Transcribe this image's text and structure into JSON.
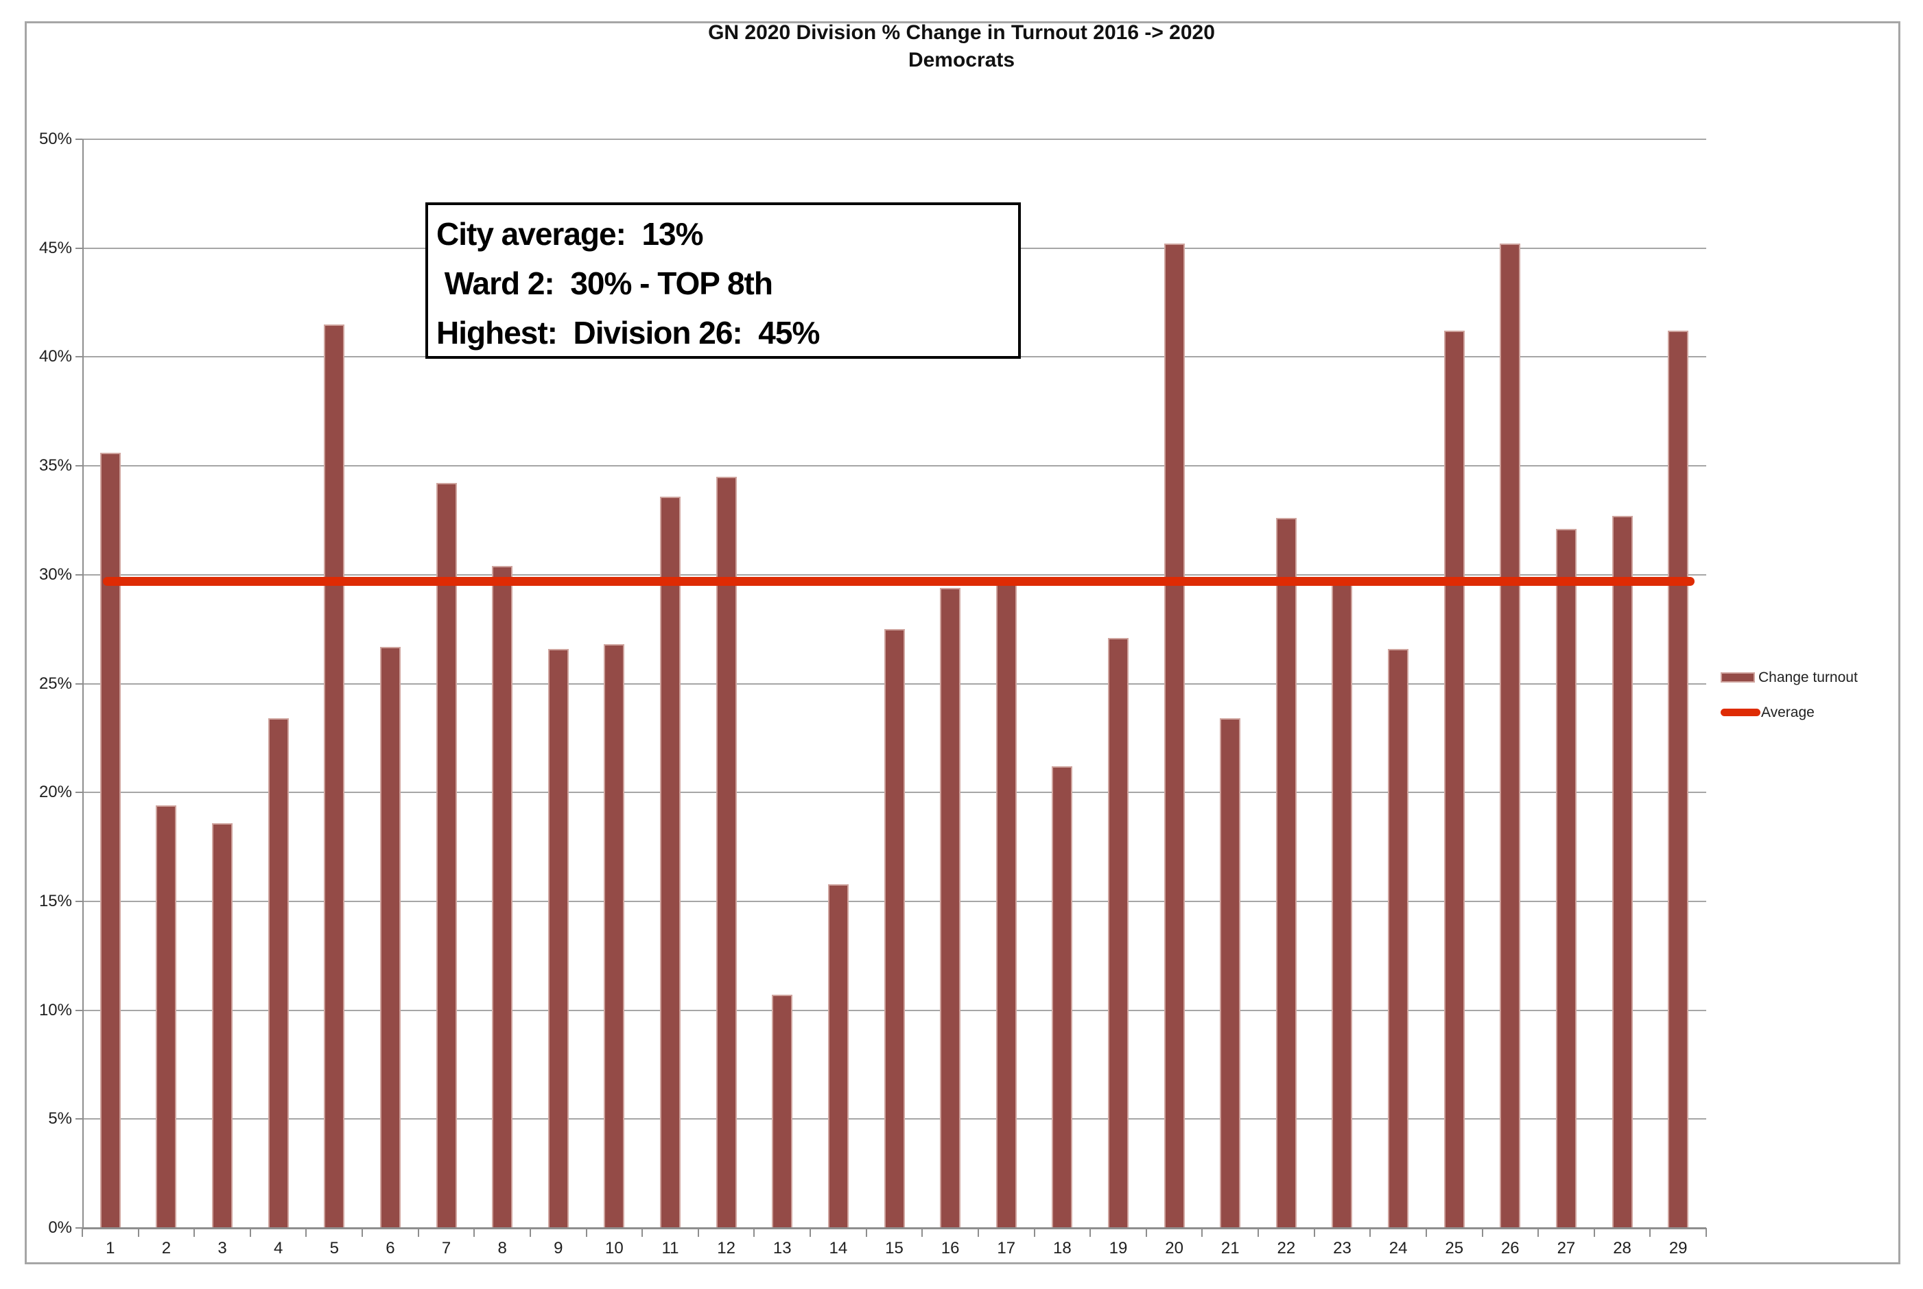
{
  "title": {
    "line1": "GN 2020 Division % Change in Turnout 2016 -> 2020",
    "line2": "Democrats"
  },
  "annotation_box": {
    "lines": [
      "City average:  13%",
      " Ward 2:  30% - TOP 8th",
      "Highest:  Division 26:  45%"
    ]
  },
  "legend": {
    "items": [
      {
        "label": "Change turnout",
        "type": "bar"
      },
      {
        "label": "Average",
        "type": "line"
      }
    ]
  },
  "colors": {
    "bar_fill": "#944b47",
    "bar_border": "#cfa49e",
    "average_line": "#de2b04",
    "gridline": "#a6a6a6",
    "axis": "#8e8e8e",
    "chart_border": "#a6a6a6",
    "text": "#1f1f1f"
  },
  "chart_data": {
    "type": "bar",
    "title": "GN 2020 Division % Change in Turnout 2016 -> 2020",
    "subtitle": "Democrats",
    "categories": [
      "1",
      "2",
      "3",
      "4",
      "5",
      "6",
      "7",
      "8",
      "9",
      "10",
      "11",
      "12",
      "13",
      "14",
      "15",
      "16",
      "17",
      "18",
      "19",
      "20",
      "21",
      "22",
      "23",
      "24",
      "25",
      "26",
      "27",
      "28",
      "29"
    ],
    "series": [
      {
        "name": "Change turnout",
        "values": [
          35.6,
          19.4,
          18.6,
          23.4,
          41.5,
          26.7,
          34.2,
          30.4,
          26.6,
          26.8,
          33.6,
          34.5,
          10.7,
          15.8,
          27.5,
          29.4,
          29.7,
          21.2,
          27.1,
          45.2,
          23.4,
          32.6,
          29.7,
          26.6,
          41.2,
          45.2,
          32.1,
          32.7,
          41.2
        ]
      }
    ],
    "average_line": {
      "name": "Average",
      "value": 29.7
    },
    "xlabel": "",
    "ylabel": "",
    "ylim": [
      0,
      50
    ],
    "y_tick_step": 5,
    "y_tick_labels": [
      "0%",
      "5%",
      "10%",
      "15%",
      "20%",
      "25%",
      "30%",
      "35%",
      "40%",
      "45%",
      "50%"
    ],
    "grid": true,
    "legend_position": "right"
  }
}
